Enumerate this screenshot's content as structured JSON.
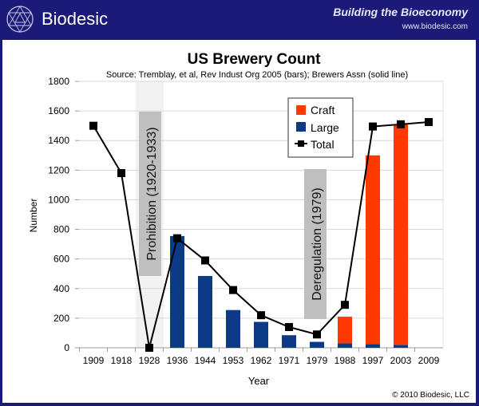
{
  "header": {
    "brand": "Biodesic",
    "tagline": "Building the Bioeconomy",
    "url": "www.biodesic.com"
  },
  "footer": {
    "copyright": "© 2010 Biodesic, LLC"
  },
  "colors": {
    "header_bg": "#1b1a78",
    "craft": "#ff3a00",
    "large": "#0d3a86",
    "total": "#000000",
    "shade": "#bfbfbf"
  },
  "chart_data": {
    "type": "bar",
    "title": "US Brewery Count",
    "subtitle": "Source: Tremblay, et al, Rev Indust Org 2005 (bars); Brewers Assn (solid line)",
    "xlabel": "Year",
    "ylabel": "Number",
    "ylim": [
      0,
      1800
    ],
    "yticks": [
      0,
      200,
      400,
      600,
      800,
      1000,
      1200,
      1400,
      1600,
      1800
    ],
    "grid": true,
    "legend_position": "top-right",
    "categories": [
      "1909",
      "1918",
      "1928",
      "1936",
      "1944",
      "1953",
      "1962",
      "1971",
      "1979",
      "1988",
      "1997",
      "2003",
      "2009"
    ],
    "series": [
      {
        "name": "Large",
        "type": "stacked-bar",
        "values": [
          null,
          null,
          null,
          755,
          485,
          255,
          175,
          85,
          40,
          30,
          25,
          20,
          null
        ]
      },
      {
        "name": "Craft",
        "type": "stacked-bar",
        "values": [
          null,
          null,
          null,
          null,
          null,
          null,
          null,
          null,
          null,
          180,
          1275,
          1490,
          null
        ]
      },
      {
        "name": "Total",
        "type": "line",
        "values": [
          1500,
          1180,
          0,
          740,
          590,
          390,
          220,
          140,
          90,
          290,
          1495,
          1510,
          1525
        ]
      }
    ],
    "annotations": [
      {
        "text": "Prohibition (1920-1933)",
        "category": "1928"
      },
      {
        "text": "Deregulation (1979)",
        "category": "1979"
      }
    ]
  }
}
